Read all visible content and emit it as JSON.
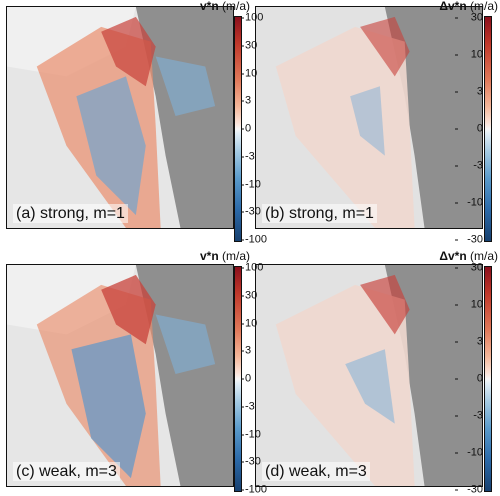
{
  "panels": [
    {
      "label": "(a) strong, m=1",
      "kind": "velocity"
    },
    {
      "label": "(b) strong, m=1",
      "kind": "difference"
    },
    {
      "label": "(c) weak, m=3",
      "kind": "velocity"
    },
    {
      "label": "(d) weak, m=3",
      "kind": "difference"
    }
  ],
  "colorbars": {
    "velocity": {
      "symbol": "v*n",
      "unit": "(m/a)",
      "ticks": [
        "100",
        "30",
        "10",
        "3",
        "0",
        "-3",
        "-10",
        "-30",
        "-100"
      ]
    },
    "difference": {
      "symbol": "Δv*n",
      "unit": "(m/a)",
      "ticks": [
        "30",
        "10",
        "3",
        "0",
        "-3",
        "-10",
        "-30"
      ]
    }
  },
  "colors": {
    "positive": "#c0392b",
    "negative": "#2c6aa9",
    "zero": "#f7f7f7",
    "terrain": "#9a9a9a",
    "ice": "#ececec"
  }
}
